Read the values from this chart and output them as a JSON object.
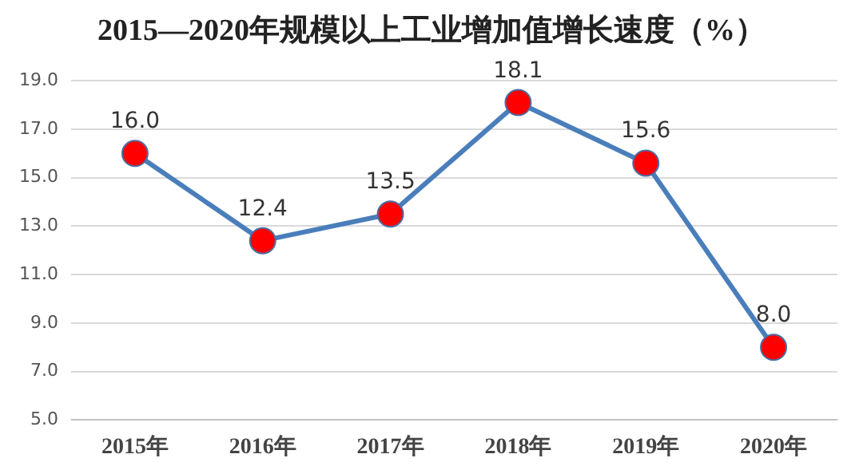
{
  "chart_data": {
    "type": "line",
    "title": "2015—2020年规模以上工业增加值增长速度（%）",
    "categories": [
      "2015年",
      "2016年",
      "2017年",
      "2018年",
      "2019年",
      "2020年"
    ],
    "series": [
      {
        "color": "#4a7ebb",
        "values": [
          16.0,
          12.4,
          13.5,
          18.1,
          15.6,
          8.0
        ],
        "value_labels": [
          "16.0",
          "12.4",
          "13.5",
          "18.1",
          "15.6",
          "8.0"
        ]
      }
    ],
    "marker": "circle",
    "ylim": [
      5,
      19
    ],
    "yticks": [
      {
        "value": 5,
        "label": "5.0"
      },
      {
        "value": 7,
        "label": "7.0"
      },
      {
        "value": 9,
        "label": "9.0"
      },
      {
        "value": 11,
        "label": "11.0"
      },
      {
        "value": 13,
        "label": "13.0"
      },
      {
        "value": 15,
        "label": "15.0"
      },
      {
        "value": 17,
        "label": "17.0"
      },
      {
        "value": 19,
        "label": "19.0"
      }
    ],
    "grid": "y",
    "legend": false
  }
}
